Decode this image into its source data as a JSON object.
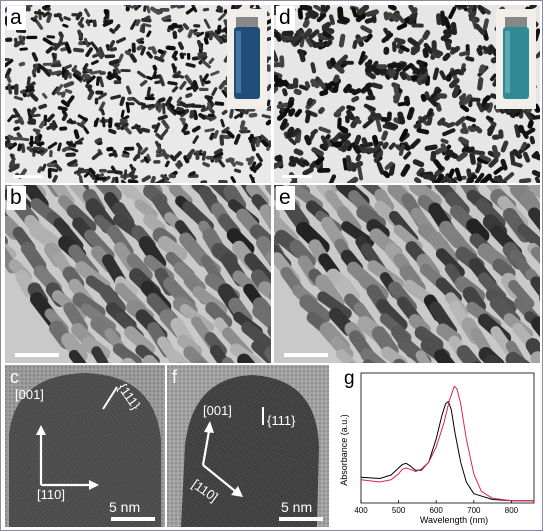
{
  "panels": {
    "a": {
      "label": "a"
    },
    "b": {
      "label": "b"
    },
    "c": {
      "label": "c",
      "dir_001": "[001]",
      "dir_110": "[110]",
      "plane": "{111}",
      "scale": "5 nm"
    },
    "d": {
      "label": "d"
    },
    "e": {
      "label": "e"
    },
    "f": {
      "label": "f",
      "dir_001": "[001]",
      "dir_110": "[110]",
      "plane": "{111}",
      "scale": "5 nm"
    },
    "g": {
      "label": "g"
    }
  },
  "colors": {
    "series_black": "#000000",
    "series_red": "#d9264f",
    "vial_a": "#1f4f78",
    "vial_d": "#2f8a96"
  },
  "chart_data": {
    "type": "line",
    "xlabel": "Wavelength (nm)",
    "ylabel": "Absorbance (a.u.)",
    "xlim": [
      400,
      860
    ],
    "xticks": [
      400,
      500,
      600,
      700,
      800
    ],
    "yticks": [],
    "series": [
      {
        "color": "#000000",
        "x": [
          400,
          450,
          480,
          500,
          510,
          520,
          530,
          545,
          560,
          580,
          600,
          615,
          625,
          632,
          640,
          650,
          665,
          680,
          700,
          750,
          800,
          860
        ],
        "y": [
          0.22,
          0.21,
          0.24,
          0.3,
          0.33,
          0.34,
          0.32,
          0.28,
          0.28,
          0.35,
          0.55,
          0.75,
          0.85,
          0.87,
          0.8,
          0.6,
          0.35,
          0.18,
          0.08,
          0.03,
          0.02,
          0.02
        ]
      },
      {
        "color": "#d9264f",
        "x": [
          400,
          450,
          480,
          500,
          510,
          520,
          530,
          545,
          560,
          580,
          600,
          620,
          635,
          648,
          655,
          665,
          680,
          700,
          720,
          750,
          800,
          860
        ],
        "y": [
          0.2,
          0.18,
          0.2,
          0.25,
          0.29,
          0.3,
          0.29,
          0.27,
          0.29,
          0.35,
          0.48,
          0.68,
          0.88,
          1.0,
          0.98,
          0.85,
          0.55,
          0.25,
          0.1,
          0.04,
          0.02,
          0.02
        ]
      }
    ]
  }
}
